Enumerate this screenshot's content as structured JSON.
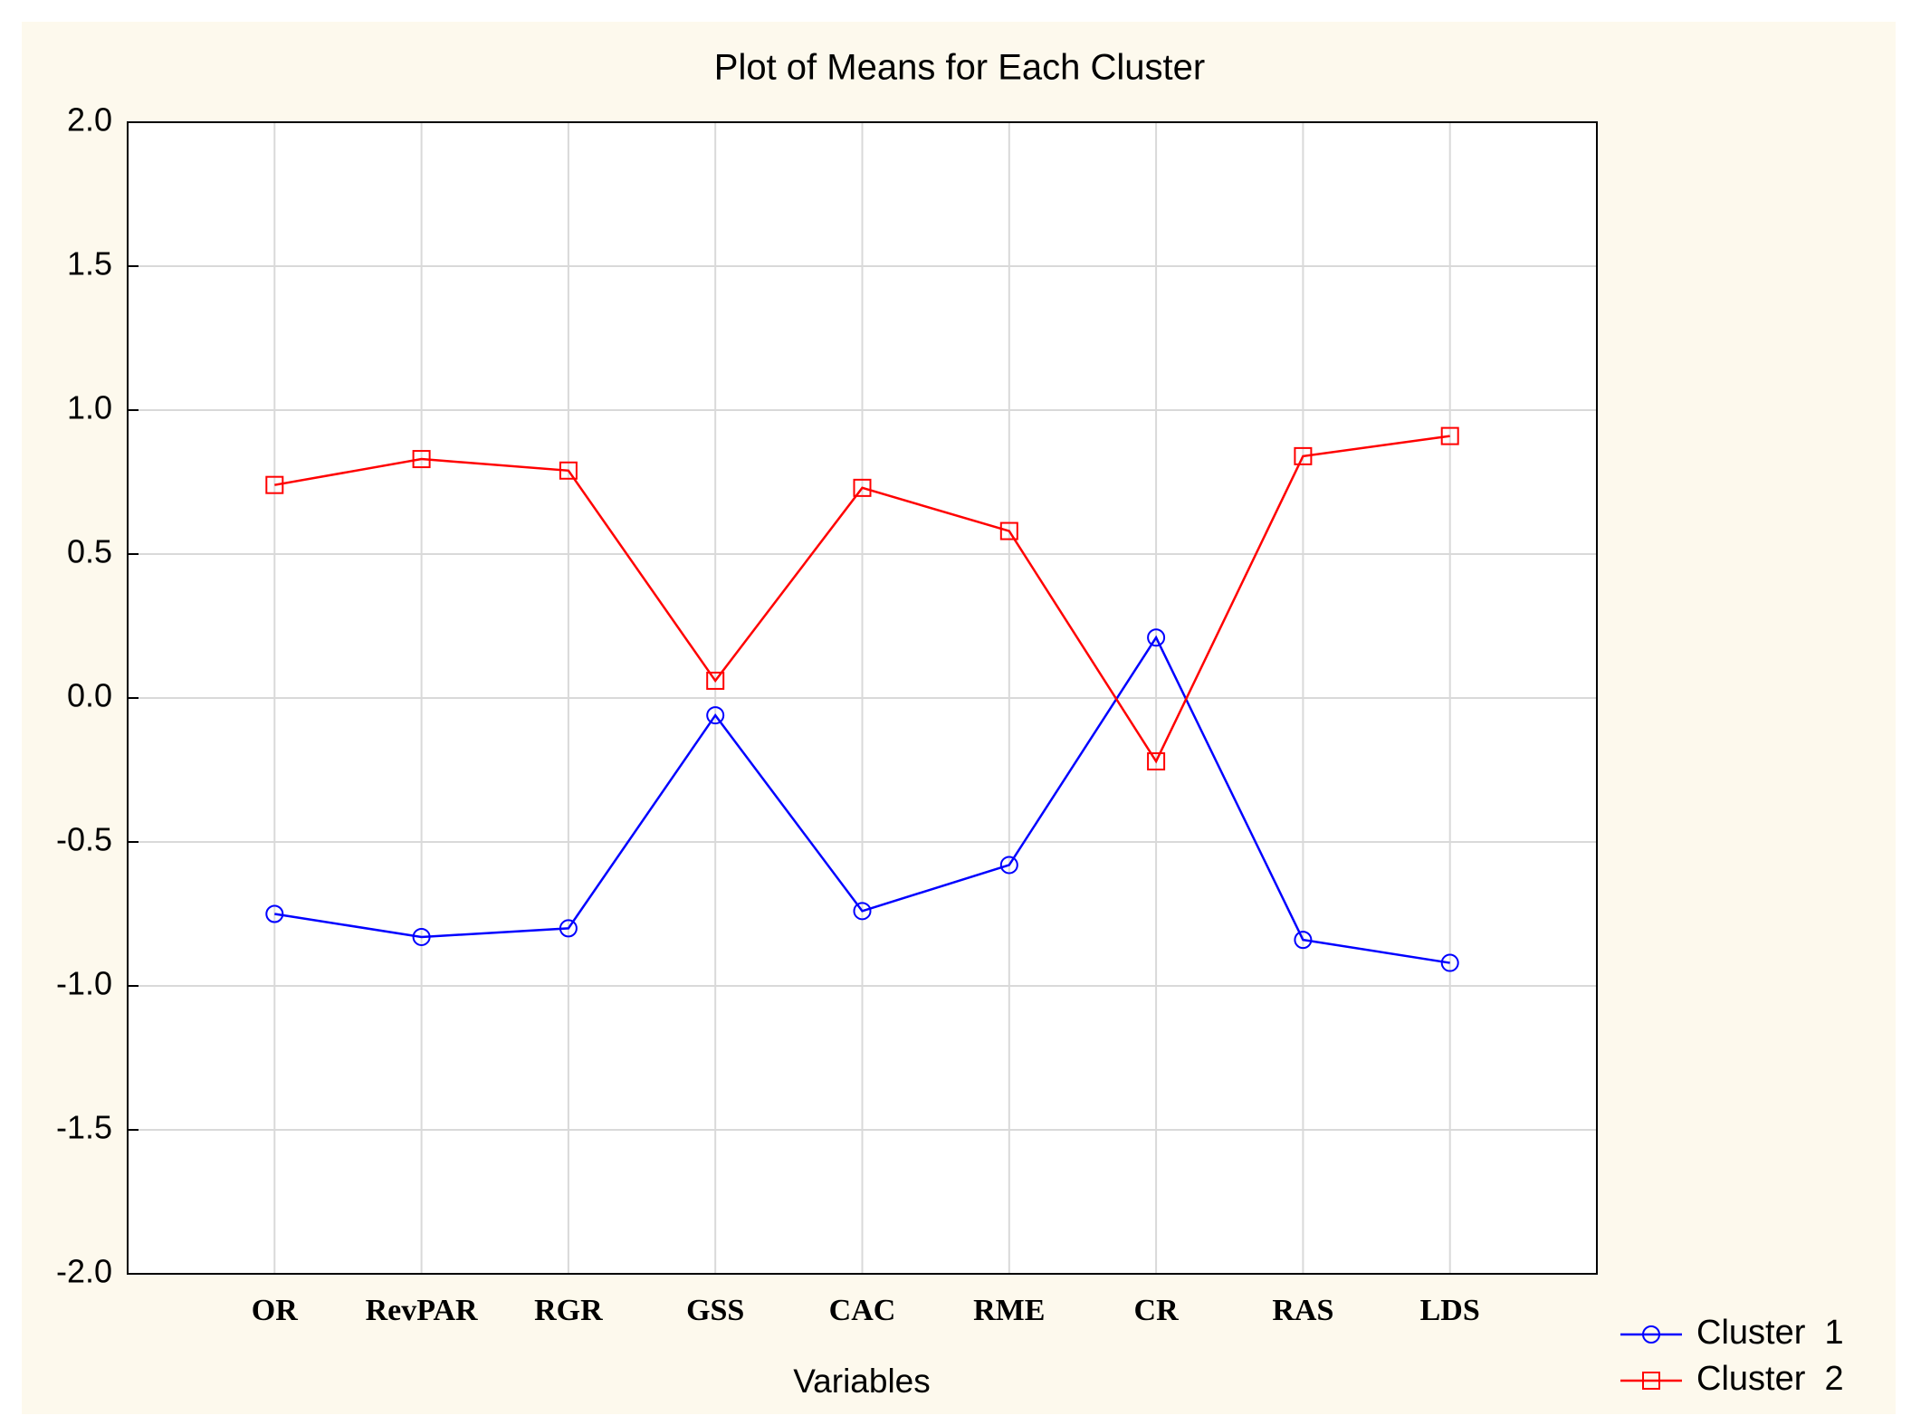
{
  "chart_data": {
    "type": "line",
    "title": "Plot of Means for Each Cluster",
    "x_label": "Variables",
    "categories": [
      "OR",
      "RevPAR",
      "RGR",
      "GSS",
      "CAC",
      "RME",
      "CR",
      "RAS",
      "LDS"
    ],
    "series": [
      {
        "name": "Cluster  1",
        "color": "#0000ff",
        "marker": "circle",
        "values": [
          -0.75,
          -0.83,
          -0.8,
          -0.06,
          -0.74,
          -0.58,
          0.21,
          -0.84,
          -0.92
        ]
      },
      {
        "name": "Cluster  2",
        "color": "#ff0000",
        "marker": "square",
        "values": [
          0.74,
          0.83,
          0.79,
          0.06,
          0.73,
          0.58,
          -0.22,
          0.84,
          0.91
        ]
      }
    ],
    "ylim": [
      -2,
      2
    ],
    "yticks": [
      {
        "value": -2,
        "label": "-2.0"
      },
      {
        "value": -1.5,
        "label": "-1.5"
      },
      {
        "value": -1,
        "label": "-1.0"
      },
      {
        "value": -0.5,
        "label": "-0.5"
      },
      {
        "value": 0,
        "label": "0.0"
      },
      {
        "value": 0.5,
        "label": "0.5"
      },
      {
        "value": 1,
        "label": "1.0"
      },
      {
        "value": 1.5,
        "label": "1.5"
      },
      {
        "value": 2,
        "label": "2.0"
      }
    ],
    "grid": true,
    "legend": "bottom-right"
  }
}
